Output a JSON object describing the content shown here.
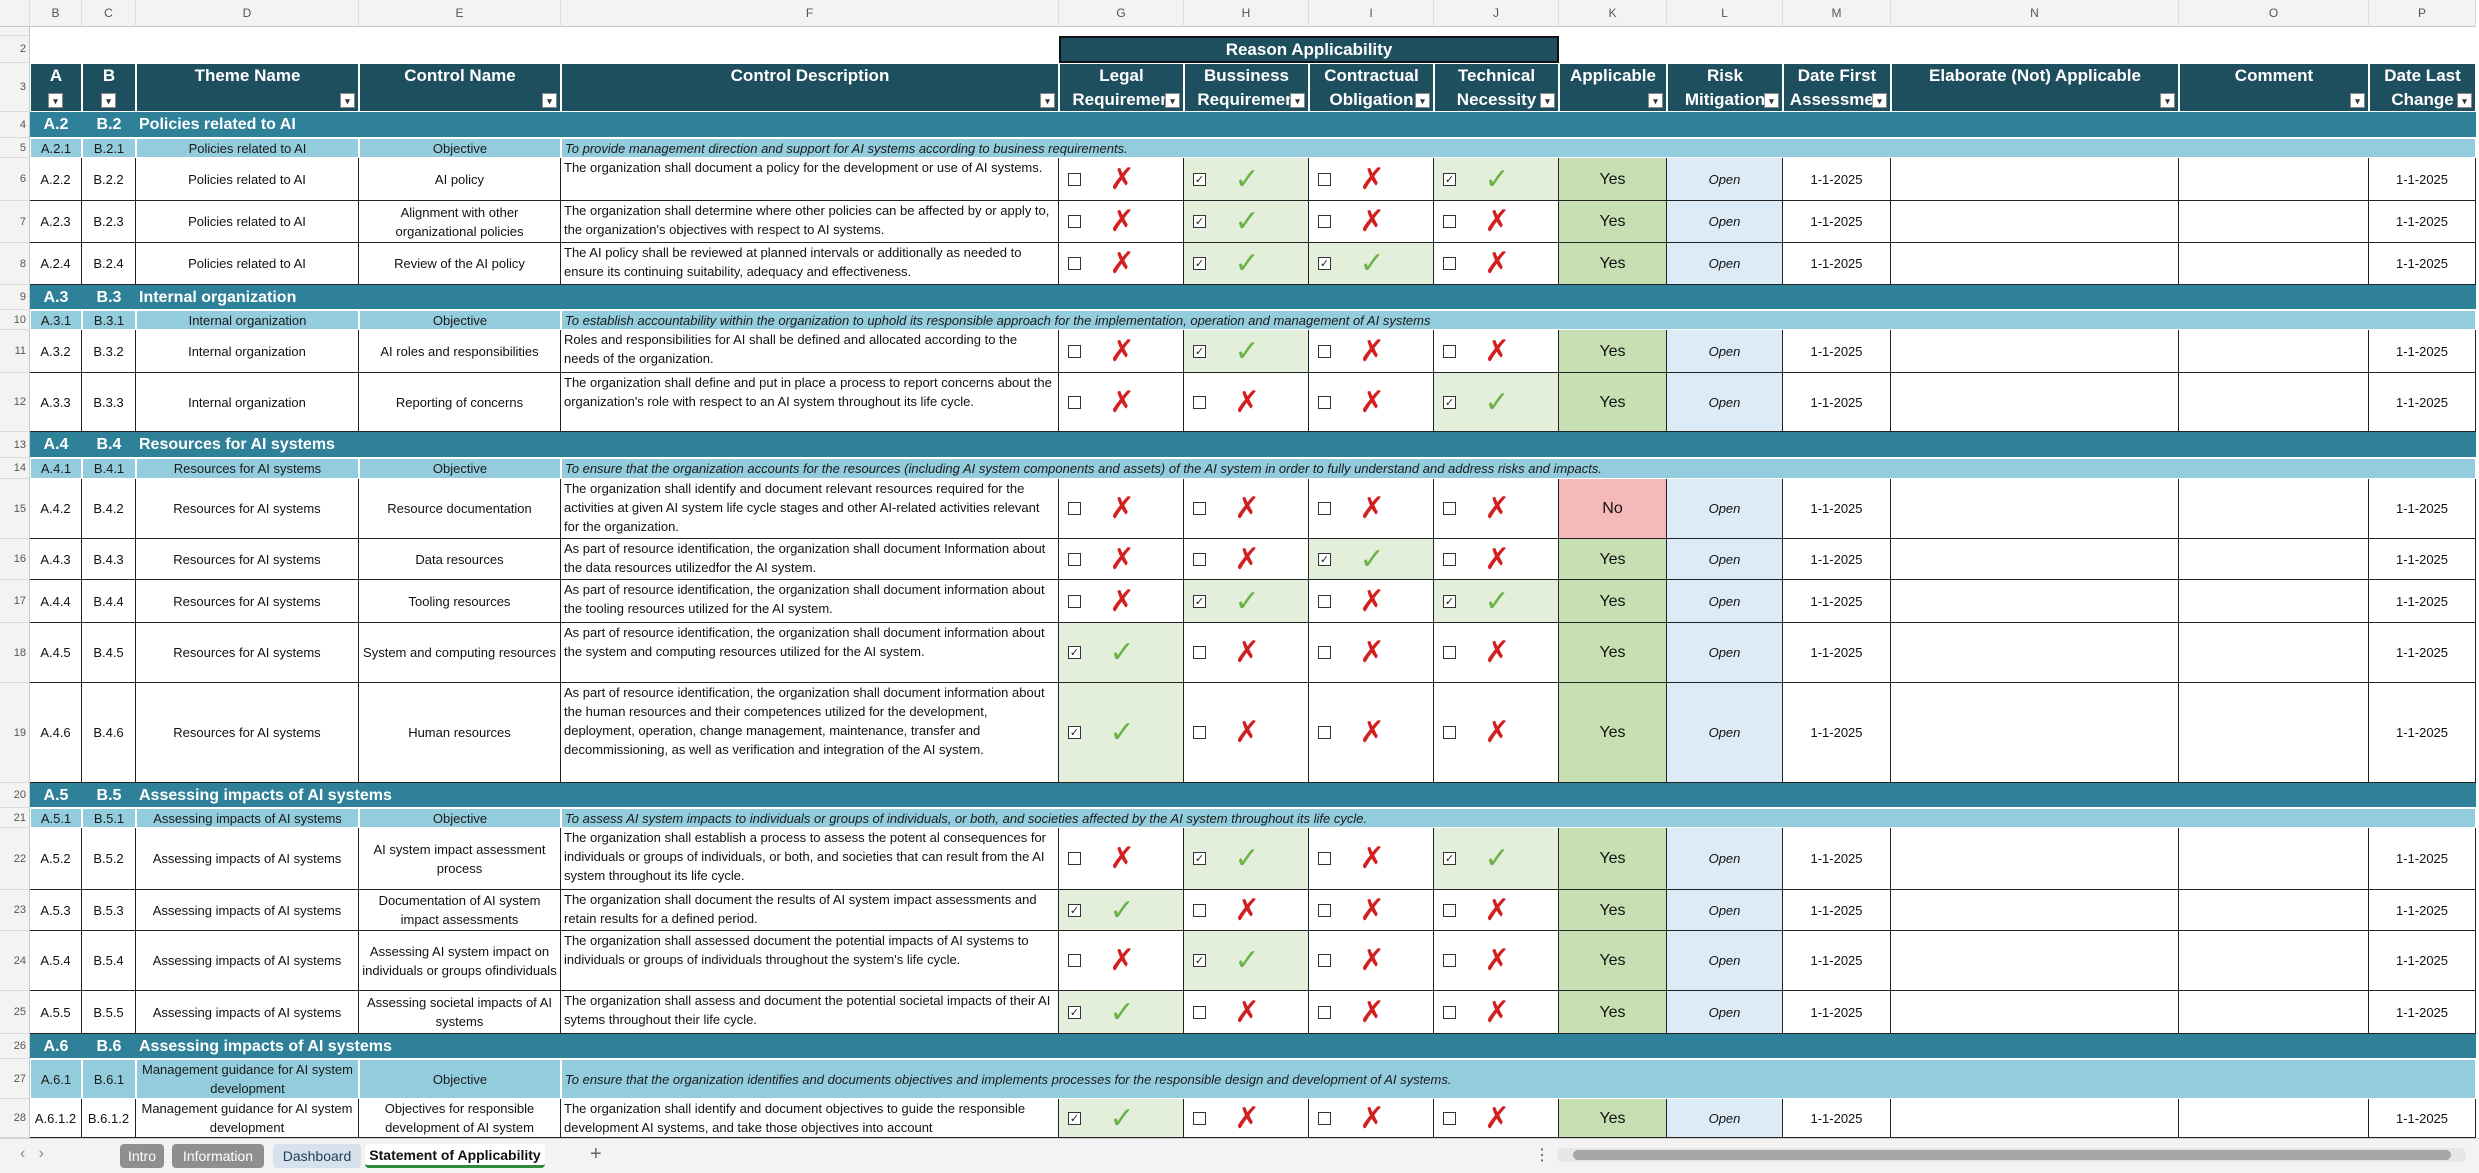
{
  "columns": [
    "B",
    "C",
    "D",
    "E",
    "F",
    "G",
    "H",
    "I",
    "J",
    "K",
    "L",
    "M",
    "N",
    "O",
    "P"
  ],
  "row_numbers": [
    2,
    3,
    4,
    5,
    6,
    7,
    8,
    9,
    10,
    11,
    12,
    13,
    14,
    15,
    16,
    17,
    18,
    19,
    20,
    21,
    22,
    23,
    24,
    25,
    26,
    27,
    28
  ],
  "reason_header": "Reason Applicability",
  "headers": [
    "A",
    "B",
    "Theme Name",
    "Control Name",
    "Control Description",
    "Legal\nRequiremen",
    "Bussiness\nRequiremen",
    "Contractual\nObligation",
    "Technical\nNecessity",
    "Applicable",
    "Risk\nMitigation",
    "Date First\nAssessmen",
    "Elaborate (Not) Applicable",
    "Comment",
    "Date Last\nChange"
  ],
  "rows": [
    {
      "kind": "section",
      "a": "A.2",
      "b": "B.2",
      "title": "Policies related to AI"
    },
    {
      "kind": "objective",
      "a": "A.2.1",
      "b": "B.2.1",
      "theme": "Policies related to AI",
      "control": "Objective",
      "description": "To provide management direction and support for AI systems according to business requirements."
    },
    {
      "kind": "control",
      "a": "A.2.2",
      "b": "B.2.2",
      "theme": "Policies related to AI",
      "control": "AI policy",
      "description": "The organization shall document a policy for the development or use of AI systems.",
      "reasons": [
        false,
        true,
        false,
        true
      ],
      "applicable": "Yes",
      "risk": "Open",
      "date_first": "1-1-2025",
      "date_last": "1-1-2025"
    },
    {
      "kind": "control",
      "a": "A.2.3",
      "b": "B.2.3",
      "theme": "Policies related to AI",
      "control": "Alignment with other organizational policies",
      "description": "The organization shall determine where other policies can be affected by or apply to, the organization's objectives with respect to AI systems.",
      "reasons": [
        false,
        true,
        false,
        false
      ],
      "applicable": "Yes",
      "risk": "Open",
      "date_first": "1-1-2025",
      "date_last": "1-1-2025"
    },
    {
      "kind": "control",
      "a": "A.2.4",
      "b": "B.2.4",
      "theme": "Policies related to AI",
      "control": "Review of the AI policy",
      "description": "The AI policy shall be reviewed at planned intervals or additionally as needed to ensure its continuing suitability, adequacy and effectiveness.",
      "reasons": [
        false,
        true,
        true,
        false
      ],
      "applicable": "Yes",
      "risk": "Open",
      "date_first": "1-1-2025",
      "date_last": "1-1-2025"
    },
    {
      "kind": "section",
      "a": "A.3",
      "b": "B.3",
      "title": "Internal organization"
    },
    {
      "kind": "objective",
      "a": "A.3.1",
      "b": "B.3.1",
      "theme": "Internal organization",
      "control": "Objective",
      "description": "To establish accountability within the organization to uphold its responsible approach for the implementation, operation and management of AI systems"
    },
    {
      "kind": "control",
      "a": "A.3.2",
      "b": "B.3.2",
      "theme": "Internal organization",
      "control": "AI roles and responsibilities",
      "description": "Roles and responsibilities for AI shall be defined and allocated according to the needs of the organization.",
      "reasons": [
        false,
        true,
        false,
        false
      ],
      "applicable": "Yes",
      "risk": "Open",
      "date_first": "1-1-2025",
      "date_last": "1-1-2025"
    },
    {
      "kind": "control",
      "a": "A.3.3",
      "b": "B.3.3",
      "theme": "Internal organization",
      "control": "Reporting of concerns",
      "description": "The organization shall define and put in place a process to report concerns about the organization's role with respect to an AI system throughout its life cycle.",
      "reasons": [
        false,
        false,
        false,
        true
      ],
      "applicable": "Yes",
      "risk": "Open",
      "date_first": "1-1-2025",
      "date_last": "1-1-2025"
    },
    {
      "kind": "section",
      "a": "A.4",
      "b": "B.4",
      "title": "Resources for AI systems"
    },
    {
      "kind": "objective",
      "a": "A.4.1",
      "b": "B.4.1",
      "theme": "Resources for AI systems",
      "control": "Objective",
      "description": "To ensure that the organization accounts for the resources (including AI system components and assets) of the AI system in order to fully understand and address risks and impacts."
    },
    {
      "kind": "control",
      "a": "A.4.2",
      "b": "B.4.2",
      "theme": "Resources for AI systems",
      "control": "Resource documentation",
      "description": "The organization shall identify and document relevant resources required for the activities at given AI system life cycle stages and other AI-related activities relevant for the organization.",
      "reasons": [
        false,
        false,
        false,
        false
      ],
      "applicable": "No",
      "risk": "Open",
      "date_first": "1-1-2025",
      "date_last": "1-1-2025"
    },
    {
      "kind": "control",
      "a": "A.4.3",
      "b": "B.4.3",
      "theme": "Resources for AI systems",
      "control": "Data resources",
      "description": "As part of resource identification, the organization shall document Information about the data resources utilizedfor the AI system.",
      "reasons": [
        false,
        false,
        true,
        false
      ],
      "applicable": "Yes",
      "risk": "Open",
      "date_first": "1-1-2025",
      "date_last": "1-1-2025"
    },
    {
      "kind": "control",
      "a": "A.4.4",
      "b": "B.4.4",
      "theme": "Resources for AI systems",
      "control": "Tooling resources",
      "description": "As part of resource identification, the organization shall document information about the tooling resources utilized for the AI system.",
      "reasons": [
        false,
        true,
        false,
        true
      ],
      "applicable": "Yes",
      "risk": "Open",
      "date_first": "1-1-2025",
      "date_last": "1-1-2025"
    },
    {
      "kind": "control",
      "a": "A.4.5",
      "b": "B.4.5",
      "theme": "Resources for AI systems",
      "control": "System and computing resources",
      "description": "As part of resource identification, the organization shall document information about the system and computing resources utilized for the AI system.",
      "reasons": [
        true,
        false,
        false,
        false
      ],
      "applicable": "Yes",
      "risk": "Open",
      "date_first": "1-1-2025",
      "date_last": "1-1-2025"
    },
    {
      "kind": "control",
      "a": "A.4.6",
      "b": "B.4.6",
      "theme": "Resources for AI systems",
      "control": "Human resources",
      "description": "As part of resource identification, the organization shall document information about the human resources and their competences utilized for the development, deployment, operation, change management, maintenance, transfer and decommissioning, as well as verification and integration of the AI system.",
      "reasons": [
        true,
        false,
        false,
        false
      ],
      "applicable": "Yes",
      "risk": "Open",
      "date_first": "1-1-2025",
      "date_last": "1-1-2025"
    },
    {
      "kind": "section",
      "a": "A.5",
      "b": "B.5",
      "title": "Assessing impacts of AI systems"
    },
    {
      "kind": "objective",
      "a": "A.5.1",
      "b": "B.5.1",
      "theme": "Assessing impacts of AI systems",
      "control": "Objective",
      "description": "To assess AI system impacts to individuals or groups of individuals, or both, and societies affected by the AI system throughout its life cycle."
    },
    {
      "kind": "control",
      "a": "A.5.2",
      "b": "B.5.2",
      "theme": "Assessing impacts of AI systems",
      "control": "AI system impact assessment process",
      "description": "The organization shall establish a process to assess the potent al consequences for individuals or groups of individuals, or both, and societies that can result from the AI system throughout its life cycle.",
      "reasons": [
        false,
        true,
        false,
        true
      ],
      "applicable": "Yes",
      "risk": "Open",
      "date_first": "1-1-2025",
      "date_last": "1-1-2025"
    },
    {
      "kind": "control",
      "a": "A.5.3",
      "b": "B.5.3",
      "theme": "Assessing impacts of AI systems",
      "control": "Documentation of AI system impact assessments",
      "description": "The organization shall document the results of AI system impact assessments and retain results for a defined period.",
      "reasons": [
        true,
        false,
        false,
        false
      ],
      "applicable": "Yes",
      "risk": "Open",
      "date_first": "1-1-2025",
      "date_last": "1-1-2025"
    },
    {
      "kind": "control",
      "a": "A.5.4",
      "b": "B.5.4",
      "theme": "Assessing impacts of AI systems",
      "control": "Assessing AI system impact on individuals or groups ofindividuals",
      "description": "The organization shall assessed document the potential impacts of AI systems to individuals or groups of individuals throughout the system's life cycle.",
      "reasons": [
        false,
        true,
        false,
        false
      ],
      "applicable": "Yes",
      "risk": "Open",
      "date_first": "1-1-2025",
      "date_last": "1-1-2025"
    },
    {
      "kind": "control",
      "a": "A.5.5",
      "b": "B.5.5",
      "theme": "Assessing impacts of AI systems",
      "control": "Assessing societal impacts of AI systems",
      "description": "The organization shall assess and document the potential societal impacts of their AI sytems throughout their life cycle.",
      "reasons": [
        true,
        false,
        false,
        false
      ],
      "applicable": "Yes",
      "risk": "Open",
      "date_first": "1-1-2025",
      "date_last": "1-1-2025"
    },
    {
      "kind": "section",
      "a": "A.6",
      "b": "B.6",
      "title": "Assessing impacts of AI systems"
    },
    {
      "kind": "objective",
      "a": "A.6.1",
      "b": "B.6.1",
      "theme": "Management guidance for AI system development",
      "control": "Objective",
      "description": "To ensure that the organization identifies  and documents objectives and implements processes for the responsible design and development of AI systems."
    },
    {
      "kind": "control",
      "a": "A.6.1.2",
      "b": "B.6.1.2",
      "theme": "Management guidance for AI system development",
      "control": "Objectives for responsible development of AI system",
      "description": "The organization shall identify and document objectives to guide the responsible development AI systems, and take those objectives into account",
      "reasons": [
        true,
        false,
        false,
        false
      ],
      "applicable": "Yes",
      "risk": "Open",
      "date_first": "1-1-2025",
      "date_last": "1-1-2025"
    }
  ],
  "tabs": [
    "Intro",
    "Information",
    "Dashboard",
    "Statement of Applicability"
  ],
  "active_tab": 3
}
